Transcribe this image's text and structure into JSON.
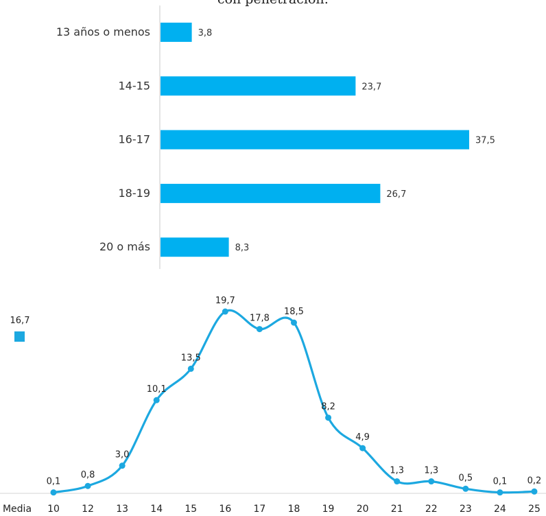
{
  "title": "con penetración:",
  "chart_data": [
    {
      "type": "bar",
      "orientation": "horizontal",
      "title": "con penetración:",
      "categories": [
        "13 años o menos",
        "14-15",
        "16-17",
        "18-19",
        "20 o más"
      ],
      "values": [
        3.8,
        23.7,
        37.5,
        26.7,
        8.3
      ],
      "value_labels": [
        "3,8",
        "23,7",
        "37,5",
        "26,7",
        "8,3"
      ],
      "xlim": [
        0,
        37.5
      ],
      "color": "#00b0f0",
      "grid": false
    },
    {
      "type": "line",
      "smooth": true,
      "x": [
        "10",
        "12",
        "13",
        "14",
        "15",
        "16",
        "17",
        "18",
        "19",
        "20",
        "21",
        "22",
        "23",
        "24",
        "25"
      ],
      "values": [
        0.1,
        0.8,
        3.0,
        10.1,
        13.5,
        19.7,
        17.8,
        18.5,
        8.2,
        4.9,
        1.3,
        1.3,
        0.5,
        0.1,
        0.2
      ],
      "value_labels": [
        "0,1",
        "0,8",
        "3,0",
        "10,1",
        "13,5",
        "19,7",
        "17,8",
        "18,5",
        "8,2",
        "4,9",
        "1,3",
        "1,3",
        "0,5",
        "0,1",
        "0,2"
      ],
      "ylim": [
        0,
        20
      ],
      "color": "#1ca8e0",
      "grid": false,
      "mean": {
        "label": "Media",
        "value": "16,7"
      }
    }
  ]
}
